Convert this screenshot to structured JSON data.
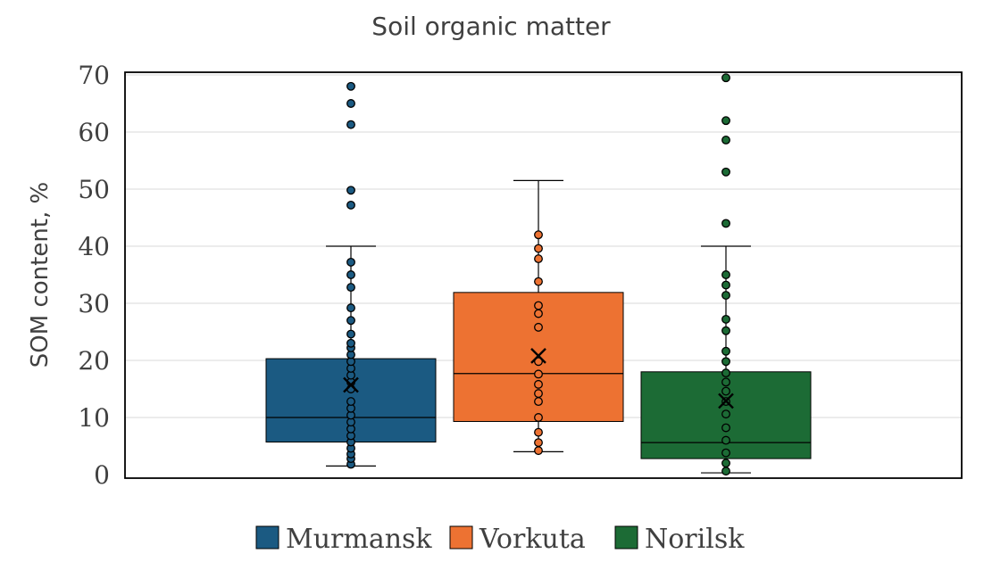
{
  "chart_data": {
    "type": "box",
    "title": "Soil organic matter",
    "xlabel": "",
    "ylabel": "SOM content, %",
    "ylim": [
      0,
      70
    ],
    "yticks": [
      0,
      10,
      20,
      30,
      40,
      50,
      60,
      70
    ],
    "grid": true,
    "legend_position": "bottom",
    "series": [
      {
        "name": "Murmansk",
        "color": "#1b5a82",
        "whisker_low": 1.5,
        "q1": 5.7,
        "median": 10.0,
        "q3": 20.3,
        "whisker_high": 40.0,
        "mean": 15.7,
        "points": [
          1.8,
          2.8,
          3.6,
          4.6,
          5.7,
          6.8,
          8.0,
          9.2,
          10.4,
          11.6,
          12.8,
          15.0,
          16.2,
          17.4,
          18.6,
          19.8,
          21.0,
          22.2,
          23.0,
          24.6,
          27.0,
          29.2,
          32.8,
          35.0,
          37.2,
          47.2,
          49.8,
          61.3,
          65.0,
          68.0
        ]
      },
      {
        "name": "Vorkuta",
        "color": "#ed7232",
        "whisker_low": 4.0,
        "q1": 9.3,
        "median": 17.7,
        "q3": 31.9,
        "whisker_high": 51.5,
        "mean": 20.8,
        "points": [
          4.2,
          5.6,
          7.4,
          10.0,
          12.8,
          14.2,
          15.8,
          17.6,
          19.8,
          25.8,
          28.2,
          29.6,
          33.8,
          37.8,
          39.6,
          42.0
        ]
      },
      {
        "name": "Norilsk",
        "color": "#1c6b35",
        "whisker_low": 0.3,
        "q1": 2.8,
        "median": 5.6,
        "q3": 18.0,
        "whisker_high": 40.0,
        "mean": 12.9,
        "points": [
          0.6,
          2.0,
          3.8,
          6.0,
          8.2,
          10.6,
          12.8,
          14.6,
          16.2,
          17.8,
          19.8,
          21.6,
          25.2,
          27.2,
          31.4,
          33.2,
          35.0,
          44.0,
          53.0,
          58.6,
          62.0,
          69.5
        ]
      }
    ]
  }
}
